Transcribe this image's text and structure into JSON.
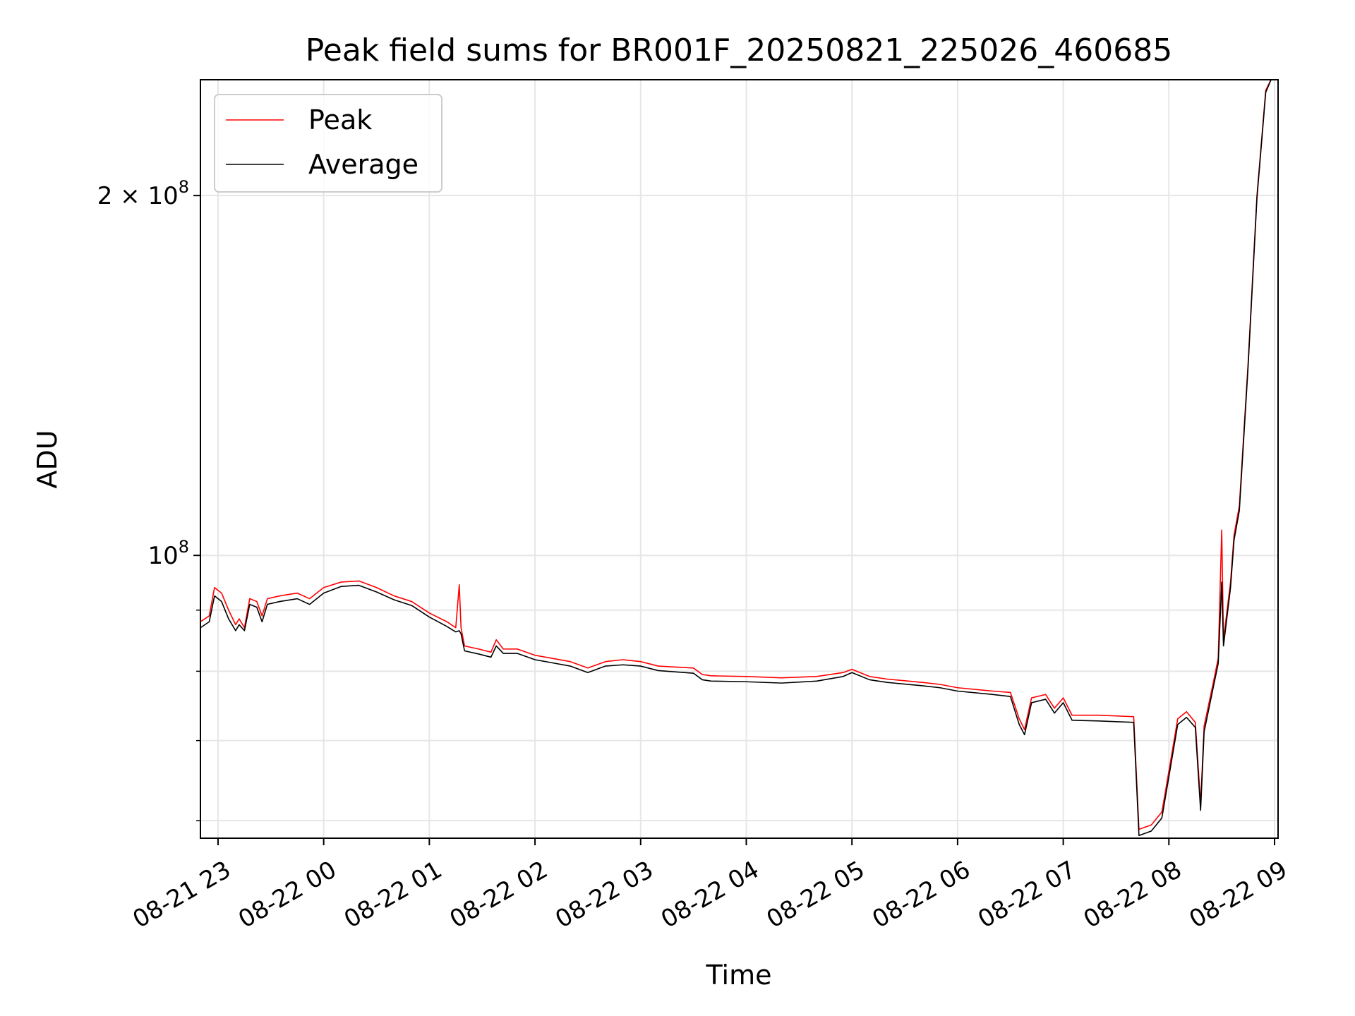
{
  "chart_data": {
    "type": "line",
    "title": "Peak field sums for BR001F_20250821_225026_460685",
    "xlabel": "Time",
    "ylabel": "ADU",
    "x_type": "datetime",
    "xlim": [
      "2025-08-21T22:50:00",
      "2025-08-22T09:02:00"
    ],
    "ylim": [
      58000000,
      250000000
    ],
    "yscale": "log",
    "grid": true,
    "legend_position": "top-left",
    "x_ticks": [
      {
        "value": "2025-08-21T23:00:00",
        "label": "08-21 23"
      },
      {
        "value": "2025-08-22T00:00:00",
        "label": "08-22 00"
      },
      {
        "value": "2025-08-22T01:00:00",
        "label": "08-22 01"
      },
      {
        "value": "2025-08-22T02:00:00",
        "label": "08-22 02"
      },
      {
        "value": "2025-08-22T03:00:00",
        "label": "08-22 03"
      },
      {
        "value": "2025-08-22T04:00:00",
        "label": "08-22 04"
      },
      {
        "value": "2025-08-22T05:00:00",
        "label": "08-22 05"
      },
      {
        "value": "2025-08-22T06:00:00",
        "label": "08-22 06"
      },
      {
        "value": "2025-08-22T07:00:00",
        "label": "08-22 07"
      },
      {
        "value": "2025-08-22T08:00:00",
        "label": "08-22 08"
      },
      {
        "value": "2025-08-22T09:00:00",
        "label": "08-22 09"
      }
    ],
    "y_major_ticks": [
      {
        "value": 100000000,
        "base": "10",
        "exp": "8"
      },
      {
        "value": 200000000,
        "base": "2 × 10",
        "exp": "8"
      }
    ],
    "y_minor_ticks": [
      60000000,
      70000000,
      80000000,
      90000000
    ],
    "series": [
      {
        "name": "Peak",
        "color": "#ff0000",
        "points": [
          [
            "2025-08-21T22:50:00",
            88000000
          ],
          [
            "2025-08-21T22:55:00",
            89000000
          ],
          [
            "2025-08-21T22:58:00",
            94000000
          ],
          [
            "2025-08-21T23:02:00",
            93000000
          ],
          [
            "2025-08-21T23:06:00",
            90000000
          ],
          [
            "2025-08-21T23:10:00",
            87500000
          ],
          [
            "2025-08-21T23:12:00",
            88500000
          ],
          [
            "2025-08-21T23:15:00",
            87000000
          ],
          [
            "2025-08-21T23:18:00",
            92000000
          ],
          [
            "2025-08-21T23:22:00",
            91500000
          ],
          [
            "2025-08-21T23:25:00",
            89000000
          ],
          [
            "2025-08-21T23:28:00",
            92000000
          ],
          [
            "2025-08-21T23:35:00",
            92500000
          ],
          [
            "2025-08-21T23:45:00",
            93000000
          ],
          [
            "2025-08-21T23:52:00",
            92000000
          ],
          [
            "2025-08-22T00:00:00",
            94000000
          ],
          [
            "2025-08-22T00:10:00",
            95000000
          ],
          [
            "2025-08-22T00:20:00",
            95200000
          ],
          [
            "2025-08-22T00:30:00",
            94000000
          ],
          [
            "2025-08-22T00:40:00",
            92500000
          ],
          [
            "2025-08-22T00:50:00",
            91500000
          ],
          [
            "2025-08-22T01:00:00",
            89500000
          ],
          [
            "2025-08-22T01:10:00",
            88000000
          ],
          [
            "2025-08-22T01:15:00",
            87000000
          ],
          [
            "2025-08-22T01:17:00",
            94500000
          ],
          [
            "2025-08-22T01:18:00",
            87000000
          ],
          [
            "2025-08-22T01:20:00",
            84000000
          ],
          [
            "2025-08-22T01:28:00",
            83500000
          ],
          [
            "2025-08-22T01:35:00",
            83000000
          ],
          [
            "2025-08-22T01:38:00",
            85000000
          ],
          [
            "2025-08-22T01:42:00",
            83500000
          ],
          [
            "2025-08-22T01:50:00",
            83500000
          ],
          [
            "2025-08-22T02:00:00",
            82500000
          ],
          [
            "2025-08-22T02:10:00",
            82000000
          ],
          [
            "2025-08-22T02:20:00",
            81500000
          ],
          [
            "2025-08-22T02:30:00",
            80500000
          ],
          [
            "2025-08-22T02:40:00",
            81500000
          ],
          [
            "2025-08-22T02:50:00",
            81800000
          ],
          [
            "2025-08-22T03:00:00",
            81500000
          ],
          [
            "2025-08-22T03:10:00",
            80800000
          ],
          [
            "2025-08-22T03:30:00",
            80500000
          ],
          [
            "2025-08-22T03:35:00",
            79500000
          ],
          [
            "2025-08-22T03:40:00",
            79300000
          ],
          [
            "2025-08-22T04:00:00",
            79200000
          ],
          [
            "2025-08-22T04:20:00",
            79000000
          ],
          [
            "2025-08-22T04:40:00",
            79200000
          ],
          [
            "2025-08-22T04:55:00",
            79800000
          ],
          [
            "2025-08-22T05:00:00",
            80300000
          ],
          [
            "2025-08-22T05:10:00",
            79200000
          ],
          [
            "2025-08-22T05:20:00",
            78800000
          ],
          [
            "2025-08-22T05:40:00",
            78300000
          ],
          [
            "2025-08-22T05:50:00",
            78000000
          ],
          [
            "2025-08-22T06:00:00",
            77500000
          ],
          [
            "2025-08-22T06:20:00",
            77000000
          ],
          [
            "2025-08-22T06:30:00",
            76800000
          ],
          [
            "2025-08-22T06:35:00",
            73000000
          ],
          [
            "2025-08-22T06:38:00",
            71500000
          ],
          [
            "2025-08-22T06:42:00",
            76000000
          ],
          [
            "2025-08-22T06:50:00",
            76500000
          ],
          [
            "2025-08-22T06:55:00",
            74500000
          ],
          [
            "2025-08-22T07:00:00",
            76000000
          ],
          [
            "2025-08-22T07:05:00",
            73500000
          ],
          [
            "2025-08-22T07:20:00",
            73500000
          ],
          [
            "2025-08-22T07:40:00",
            73300000
          ],
          [
            "2025-08-22T07:43:00",
            59000000
          ],
          [
            "2025-08-22T07:50:00",
            59500000
          ],
          [
            "2025-08-22T07:56:00",
            61000000
          ],
          [
            "2025-08-22T08:00:00",
            66000000
          ],
          [
            "2025-08-22T08:05:00",
            73000000
          ],
          [
            "2025-08-22T08:10:00",
            74000000
          ],
          [
            "2025-08-22T08:15:00",
            72500000
          ],
          [
            "2025-08-22T08:18:00",
            62000000
          ],
          [
            "2025-08-22T08:20:00",
            72000000
          ],
          [
            "2025-08-22T08:25:00",
            78000000
          ],
          [
            "2025-08-22T08:28:00",
            82000000
          ],
          [
            "2025-08-22T08:30:00",
            105000000
          ],
          [
            "2025-08-22T08:31:00",
            85000000
          ],
          [
            "2025-08-22T08:35:00",
            95000000
          ],
          [
            "2025-08-22T08:37:00",
            104000000
          ],
          [
            "2025-08-22T08:40:00",
            110000000
          ],
          [
            "2025-08-22T08:45:00",
            145000000
          ],
          [
            "2025-08-22T08:50:00",
            200000000
          ],
          [
            "2025-08-22T08:55:00",
            245000000
          ],
          [
            "2025-08-22T08:58:00",
            250000000
          ]
        ]
      },
      {
        "name": "Average",
        "color": "#000000",
        "points": [
          [
            "2025-08-21T22:50:00",
            87000000
          ],
          [
            "2025-08-21T22:55:00",
            88000000
          ],
          [
            "2025-08-21T22:58:00",
            92500000
          ],
          [
            "2025-08-21T23:02:00",
            91500000
          ],
          [
            "2025-08-21T23:06:00",
            88500000
          ],
          [
            "2025-08-21T23:10:00",
            86500000
          ],
          [
            "2025-08-21T23:12:00",
            87500000
          ],
          [
            "2025-08-21T23:15:00",
            86500000
          ],
          [
            "2025-08-21T23:18:00",
            91000000
          ],
          [
            "2025-08-21T23:22:00",
            90500000
          ],
          [
            "2025-08-21T23:25:00",
            88000000
          ],
          [
            "2025-08-21T23:28:00",
            91000000
          ],
          [
            "2025-08-21T23:35:00",
            91500000
          ],
          [
            "2025-08-21T23:45:00",
            92000000
          ],
          [
            "2025-08-21T23:52:00",
            91000000
          ],
          [
            "2025-08-22T00:00:00",
            93000000
          ],
          [
            "2025-08-22T00:10:00",
            94200000
          ],
          [
            "2025-08-22T00:20:00",
            94400000
          ],
          [
            "2025-08-22T00:30:00",
            93200000
          ],
          [
            "2025-08-22T00:40:00",
            91800000
          ],
          [
            "2025-08-22T00:50:00",
            90800000
          ],
          [
            "2025-08-22T01:00:00",
            88800000
          ],
          [
            "2025-08-22T01:10:00",
            87200000
          ],
          [
            "2025-08-22T01:15:00",
            86300000
          ],
          [
            "2025-08-22T01:17:00",
            86500000
          ],
          [
            "2025-08-22T01:18:00",
            86000000
          ],
          [
            "2025-08-22T01:20:00",
            83200000
          ],
          [
            "2025-08-22T01:28:00",
            82700000
          ],
          [
            "2025-08-22T01:35:00",
            82200000
          ],
          [
            "2025-08-22T01:38:00",
            84000000
          ],
          [
            "2025-08-22T01:42:00",
            82800000
          ],
          [
            "2025-08-22T01:50:00",
            82800000
          ],
          [
            "2025-08-22T02:00:00",
            81800000
          ],
          [
            "2025-08-22T02:10:00",
            81300000
          ],
          [
            "2025-08-22T02:20:00",
            80800000
          ],
          [
            "2025-08-22T02:30:00",
            79800000
          ],
          [
            "2025-08-22T02:40:00",
            80800000
          ],
          [
            "2025-08-22T02:50:00",
            81000000
          ],
          [
            "2025-08-22T03:00:00",
            80800000
          ],
          [
            "2025-08-22T03:10:00",
            80100000
          ],
          [
            "2025-08-22T03:30:00",
            79700000
          ],
          [
            "2025-08-22T03:35:00",
            78700000
          ],
          [
            "2025-08-22T03:40:00",
            78500000
          ],
          [
            "2025-08-22T04:00:00",
            78400000
          ],
          [
            "2025-08-22T04:20:00",
            78200000
          ],
          [
            "2025-08-22T04:40:00",
            78500000
          ],
          [
            "2025-08-22T04:55:00",
            79200000
          ],
          [
            "2025-08-22T05:00:00",
            79800000
          ],
          [
            "2025-08-22T05:10:00",
            78700000
          ],
          [
            "2025-08-22T05:20:00",
            78300000
          ],
          [
            "2025-08-22T05:40:00",
            77800000
          ],
          [
            "2025-08-22T05:50:00",
            77500000
          ],
          [
            "2025-08-22T06:00:00",
            77000000
          ],
          [
            "2025-08-22T06:20:00",
            76500000
          ],
          [
            "2025-08-22T06:30:00",
            76200000
          ],
          [
            "2025-08-22T06:35:00",
            72200000
          ],
          [
            "2025-08-22T06:38:00",
            70800000
          ],
          [
            "2025-08-22T06:42:00",
            75300000
          ],
          [
            "2025-08-22T06:50:00",
            75800000
          ],
          [
            "2025-08-22T06:55:00",
            73800000
          ],
          [
            "2025-08-22T07:00:00",
            75300000
          ],
          [
            "2025-08-22T07:05:00",
            72800000
          ],
          [
            "2025-08-22T07:20:00",
            72700000
          ],
          [
            "2025-08-22T07:40:00",
            72500000
          ],
          [
            "2025-08-22T07:43:00",
            58300000
          ],
          [
            "2025-08-22T07:50:00",
            58800000
          ],
          [
            "2025-08-22T07:56:00",
            60300000
          ],
          [
            "2025-08-22T08:00:00",
            65300000
          ],
          [
            "2025-08-22T08:05:00",
            72200000
          ],
          [
            "2025-08-22T08:10:00",
            73200000
          ],
          [
            "2025-08-22T08:15:00",
            71800000
          ],
          [
            "2025-08-22T08:18:00",
            61200000
          ],
          [
            "2025-08-22T08:20:00",
            71200000
          ],
          [
            "2025-08-22T08:25:00",
            77300000
          ],
          [
            "2025-08-22T08:28:00",
            81200000
          ],
          [
            "2025-08-22T08:30:00",
            95000000
          ],
          [
            "2025-08-22T08:31:00",
            84000000
          ],
          [
            "2025-08-22T08:35:00",
            94000000
          ],
          [
            "2025-08-22T08:37:00",
            103000000
          ],
          [
            "2025-08-22T08:40:00",
            109000000
          ],
          [
            "2025-08-22T08:45:00",
            144000000
          ],
          [
            "2025-08-22T08:50:00",
            199000000
          ],
          [
            "2025-08-22T08:55:00",
            244000000
          ],
          [
            "2025-08-22T08:58:00",
            250000000
          ]
        ]
      }
    ]
  }
}
